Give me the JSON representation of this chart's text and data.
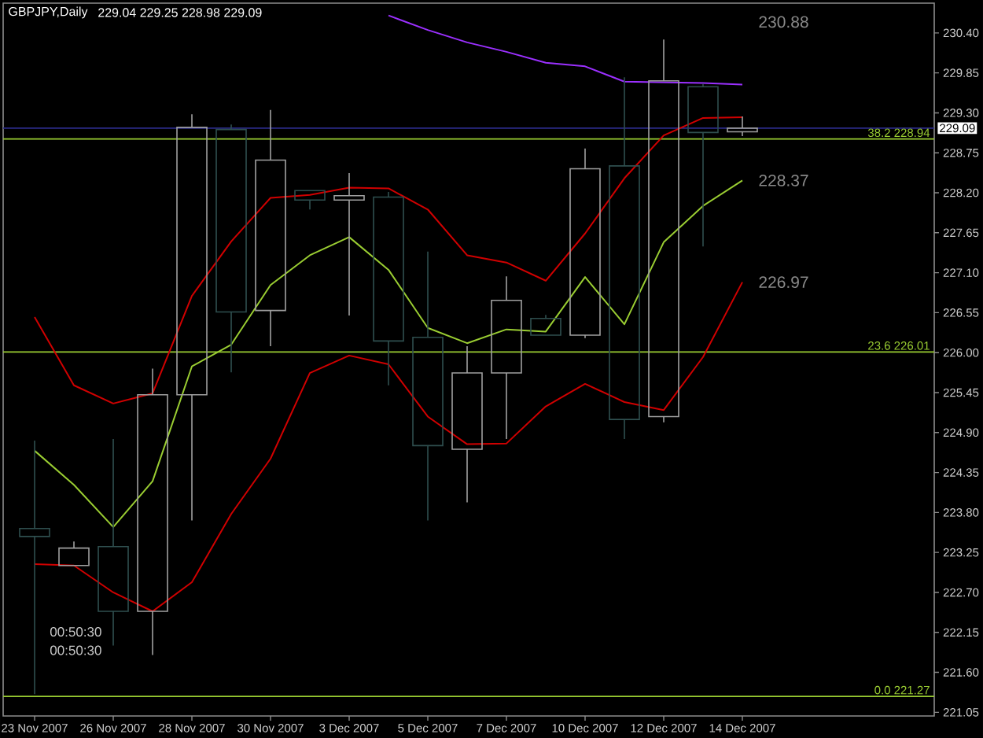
{
  "chart_data": {
    "type": "candlestick",
    "title": "GBPJPY,Daily",
    "subtitle": "229.04 229.25 228.98 229.09",
    "categories": [
      "23 Nov 2007",
      null,
      "26 Nov 2007",
      null,
      "28 Nov 2007",
      null,
      "30 Nov 2007",
      null,
      "3 Dec 2007",
      null,
      "5 Dec 2007",
      null,
      "7 Dec 2007",
      null,
      "10 Dec 2007",
      null,
      "12 Dec 2007",
      null,
      "14 Dec 2007"
    ],
    "ohlc": [
      [
        223.58,
        224.79,
        221.3,
        223.47
      ],
      [
        223.07,
        223.4,
        223.07,
        223.31
      ],
      [
        223.33,
        224.81,
        221.97,
        222.44
      ],
      [
        222.44,
        225.78,
        221.84,
        225.42
      ],
      [
        225.42,
        229.28,
        223.69,
        229.1
      ],
      [
        229.07,
        229.14,
        225.73,
        226.56
      ],
      [
        226.58,
        229.34,
        226.09,
        228.65
      ],
      [
        228.23,
        228.23,
        227.97,
        228.1
      ],
      [
        228.1,
        228.47,
        226.51,
        228.16
      ],
      [
        228.14,
        228.21,
        225.55,
        226.16
      ],
      [
        226.21,
        227.39,
        223.69,
        224.72
      ],
      [
        224.67,
        226.09,
        223.94,
        225.72
      ],
      [
        225.72,
        227.05,
        224.81,
        226.72
      ],
      [
        226.47,
        226.52,
        226.24,
        226.24
      ],
      [
        226.24,
        228.81,
        226.2,
        228.53
      ],
      [
        228.57,
        229.79,
        224.81,
        225.08
      ],
      [
        225.12,
        230.31,
        225.04,
        229.74
      ],
      [
        229.66,
        229.7,
        227.46,
        229.03
      ],
      [
        229.04,
        229.25,
        228.98,
        229.09
      ]
    ],
    "colors": [
      "#2f4f4f",
      "#a0a0a0",
      "#2f4f4f",
      "#a0a0a0",
      "#a0a0a0",
      "#2f4f4f",
      "#a0a0a0",
      "#2f4f4f",
      "#a0a0a0",
      "#2f4f4f",
      "#2f4f4f",
      "#a0a0a0",
      "#a0a0a0",
      "#2f4f4f",
      "#a0a0a0",
      "#2f4f4f",
      "#a0a0a0",
      "#2f4f4f",
      "#a0a0a0"
    ],
    "series": [
      {
        "type": "line",
        "color": "#9b30ff",
        "values": [
          null,
          null,
          null,
          null,
          null,
          null,
          null,
          null,
          null,
          230.64,
          230.44,
          230.27,
          230.14,
          229.99,
          229.94,
          229.73,
          229.72,
          229.71,
          229.69
        ]
      },
      {
        "type": "line",
        "color": "#d00000",
        "values": [
          226.49,
          225.55,
          225.3,
          225.44,
          226.78,
          227.53,
          228.13,
          228.17,
          228.27,
          228.26,
          227.97,
          227.34,
          227.24,
          226.99,
          227.64,
          228.4,
          228.99,
          229.23,
          229.24
        ]
      },
      {
        "type": "line",
        "color": "#9acd32",
        "values": [
          224.65,
          224.18,
          223.6,
          224.23,
          225.81,
          226.11,
          226.93,
          227.34,
          227.59,
          227.14,
          226.34,
          226.13,
          226.32,
          226.29,
          227.04,
          226.39,
          227.52,
          228.02,
          228.37
        ]
      },
      {
        "type": "line",
        "color": "#d00000",
        "values": [
          223.09,
          223.07,
          222.7,
          222.44,
          222.84,
          223.78,
          224.54,
          225.72,
          225.96,
          225.84,
          225.12,
          224.74,
          224.75,
          225.26,
          225.57,
          225.32,
          225.21,
          225.94,
          226.97
        ]
      }
    ],
    "ylim": [
      221.0,
      230.81
    ],
    "yticks": [
      221.05,
      {
        "value": 221.6,
        "label": "221.60"
      },
      222.15,
      {
        "value": 222.7,
        "label": "222.70"
      },
      223.25,
      {
        "value": 223.8,
        "label": "223.80"
      },
      224.35,
      {
        "value": 224.9,
        "label": "224.90"
      },
      225.45,
      {
        "value": 226,
        "label": "226.00"
      },
      226.55,
      {
        "value": 227.1,
        "label": "227.10"
      },
      227.65,
      {
        "value": 228.2,
        "label": "228.20"
      },
      228.75,
      {
        "value": 229.3,
        "label": "229.30"
      },
      229.85,
      {
        "value": 230.4,
        "label": "230.40"
      }
    ],
    "ref_lines": [
      {
        "axis": "y",
        "value": 229.09,
        "label": "229.09",
        "color": "#2b2b8a"
      },
      {
        "axis": "y",
        "value": 228.94,
        "color": "#9acd32"
      },
      {
        "axis": "y",
        "value": 226.01,
        "color": "#9acd32"
      },
      {
        "axis": "y",
        "value": 221.27,
        "color": "#9acd32"
      }
    ],
    "annotations": [
      "230.88",
      {
        "text": "228.37",
        "x": "14 Dec 2007",
        "y": 228.37
      },
      {
        "text": "226.97",
        "x": "14 Dec 2007",
        "y": 226.97
      },
      {
        "text": "38.2 228.94",
        "y": 228.94
      },
      {
        "text": "23.6 226.01",
        "y": 226.01
      },
      {
        "text": "0.0 221.27",
        "y": 221.27
      },
      "00:50:30",
      "00:50:30"
    ]
  }
}
